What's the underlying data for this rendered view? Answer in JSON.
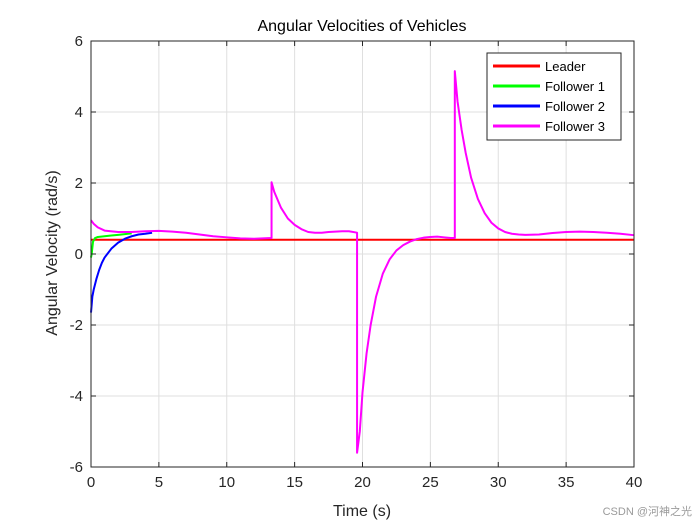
{
  "chart_data": {
    "type": "line",
    "title": "Angular Velocities of Vehicles",
    "xlabel": "Time (s)",
    "ylabel": "Angular Velocity (rad/s)",
    "xlim": [
      0,
      40
    ],
    "ylim": [
      -6,
      6
    ],
    "xticks": [
      0,
      5,
      10,
      15,
      20,
      25,
      30,
      35,
      40
    ],
    "yticks": [
      -6,
      -4,
      -2,
      0,
      2,
      4,
      6
    ],
    "grid": true,
    "legend_position": "top-right",
    "series": [
      {
        "name": "Leader",
        "color": "#ff0000",
        "x": [
          0,
          40
        ],
        "y": [
          0.4,
          0.4
        ]
      },
      {
        "name": "Follower 1",
        "color": "#00ff00",
        "x": [
          0,
          0.05,
          0.15,
          0.3,
          0.5,
          1.0,
          1.5,
          2.0,
          2.5,
          3.0
        ],
        "y": [
          -0.1,
          0.0,
          0.35,
          0.45,
          0.48,
          0.5,
          0.52,
          0.54,
          0.56,
          0.58
        ]
      },
      {
        "name": "Follower 2",
        "color": "#0000ff",
        "x": [
          0,
          0.1,
          0.2,
          0.4,
          0.6,
          0.8,
          1.0,
          1.5,
          2.0,
          2.5,
          3.0,
          3.5,
          4.0,
          4.5
        ],
        "y": [
          -1.65,
          -1.2,
          -1.0,
          -0.7,
          -0.45,
          -0.25,
          -0.1,
          0.15,
          0.32,
          0.43,
          0.5,
          0.55,
          0.57,
          0.6
        ]
      },
      {
        "name": "Follower 3",
        "color": "#ff00ff",
        "x": [
          0,
          0.2,
          0.5,
          1.0,
          2.0,
          3.0,
          4.0,
          5.0,
          6.0,
          7.0,
          8.0,
          9.0,
          10.0,
          11.0,
          12.0,
          13.3,
          13.3,
          13.5,
          14.0,
          14.5,
          15.0,
          15.5,
          16.0,
          16.5,
          17.0,
          17.5,
          18.0,
          18.5,
          19.0,
          19.6,
          19.6,
          19.8,
          20.0,
          20.3,
          20.6,
          21.0,
          21.5,
          22.0,
          22.5,
          23.0,
          23.5,
          24.0,
          24.5,
          25.0,
          25.5,
          26.0,
          26.5,
          26.8,
          26.8,
          27.0,
          27.3,
          27.6,
          28.0,
          28.5,
          29.0,
          29.5,
          30.0,
          30.5,
          31.0,
          31.5,
          32.0,
          33.0,
          34.0,
          35.0,
          36.0,
          37.0,
          38.0,
          39.0,
          40.0
        ],
        "y": [
          0.95,
          0.85,
          0.75,
          0.66,
          0.62,
          0.62,
          0.64,
          0.65,
          0.63,
          0.6,
          0.55,
          0.5,
          0.47,
          0.44,
          0.43,
          0.45,
          2.02,
          1.75,
          1.3,
          1.0,
          0.82,
          0.7,
          0.62,
          0.6,
          0.6,
          0.62,
          0.63,
          0.64,
          0.64,
          0.6,
          -5.6,
          -5.0,
          -3.9,
          -2.8,
          -2.0,
          -1.2,
          -0.55,
          -0.15,
          0.1,
          0.25,
          0.35,
          0.42,
          0.46,
          0.48,
          0.49,
          0.47,
          0.45,
          0.45,
          5.15,
          4.3,
          3.5,
          2.85,
          2.15,
          1.55,
          1.15,
          0.88,
          0.72,
          0.62,
          0.57,
          0.55,
          0.54,
          0.55,
          0.59,
          0.62,
          0.63,
          0.62,
          0.6,
          0.57,
          0.53
        ]
      }
    ]
  },
  "watermark": "CSDN @河神之光"
}
